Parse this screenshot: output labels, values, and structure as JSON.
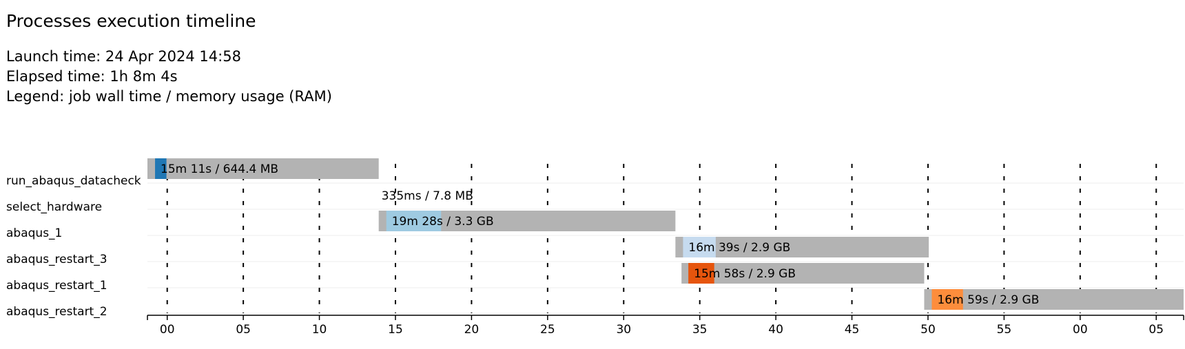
{
  "header": {
    "title": "Processes execution timeline",
    "launch_time": "Launch time: 24 Apr 2024 14:58",
    "elapsed_time": "Elapsed time: 1h 8m 4s",
    "legend": "Legend: job wall time / memory usage (RAM)"
  },
  "chart_data": {
    "type": "bar",
    "orientation": "horizontal-timeline",
    "x_unit": "minutes after 14:00 (clock minute labels)",
    "x_range": [
      58.7,
      126.8
    ],
    "ticks": [
      {
        "minute": 60,
        "label": "00"
      },
      {
        "minute": 65,
        "label": "05"
      },
      {
        "minute": 70,
        "label": "10"
      },
      {
        "minute": 75,
        "label": "15"
      },
      {
        "minute": 80,
        "label": "20"
      },
      {
        "minute": 85,
        "label": "25"
      },
      {
        "minute": 90,
        "label": "30"
      },
      {
        "minute": 95,
        "label": "35"
      },
      {
        "minute": 100,
        "label": "40"
      },
      {
        "minute": 105,
        "label": "45"
      },
      {
        "minute": 110,
        "label": "50"
      },
      {
        "minute": 115,
        "label": "55"
      },
      {
        "minute": 120,
        "label": "00"
      },
      {
        "minute": 125,
        "label": "05"
      }
    ],
    "grid": true,
    "tasks": [
      {
        "name": "run_abaqus_datacheck",
        "submit": 58.7,
        "start": 59.2,
        "end": 59.95,
        "complete": 73.9,
        "color": "#1f77b4",
        "label": "15m 11s / 644.4 MB"
      },
      {
        "name": "select_hardware",
        "submit": 73.9,
        "start": 73.9,
        "end": 73.91,
        "complete": 73.91,
        "color": "#9ecae1",
        "label": "335ms / 7.8 MB"
      },
      {
        "name": "abaqus_1",
        "submit": 73.9,
        "start": 74.4,
        "end": 78.0,
        "complete": 93.4,
        "color": "#9ecae1",
        "label": "19m 28s / 3.3 GB"
      },
      {
        "name": "abaqus_restart_3",
        "submit": 93.4,
        "start": 93.9,
        "end": 96.05,
        "complete": 110.05,
        "color": "#c6dbef",
        "label": "16m 39s / 2.9 GB"
      },
      {
        "name": "abaqus_restart_1",
        "submit": 93.8,
        "start": 94.25,
        "end": 95.95,
        "complete": 109.75,
        "color": "#e6550d",
        "label": "15m 58s / 2.9 GB"
      },
      {
        "name": "abaqus_restart_2",
        "submit": 109.75,
        "start": 110.25,
        "end": 112.3,
        "complete": 126.8,
        "color": "#fd8d3c",
        "label": "16m 59s / 2.9 GB"
      }
    ]
  }
}
